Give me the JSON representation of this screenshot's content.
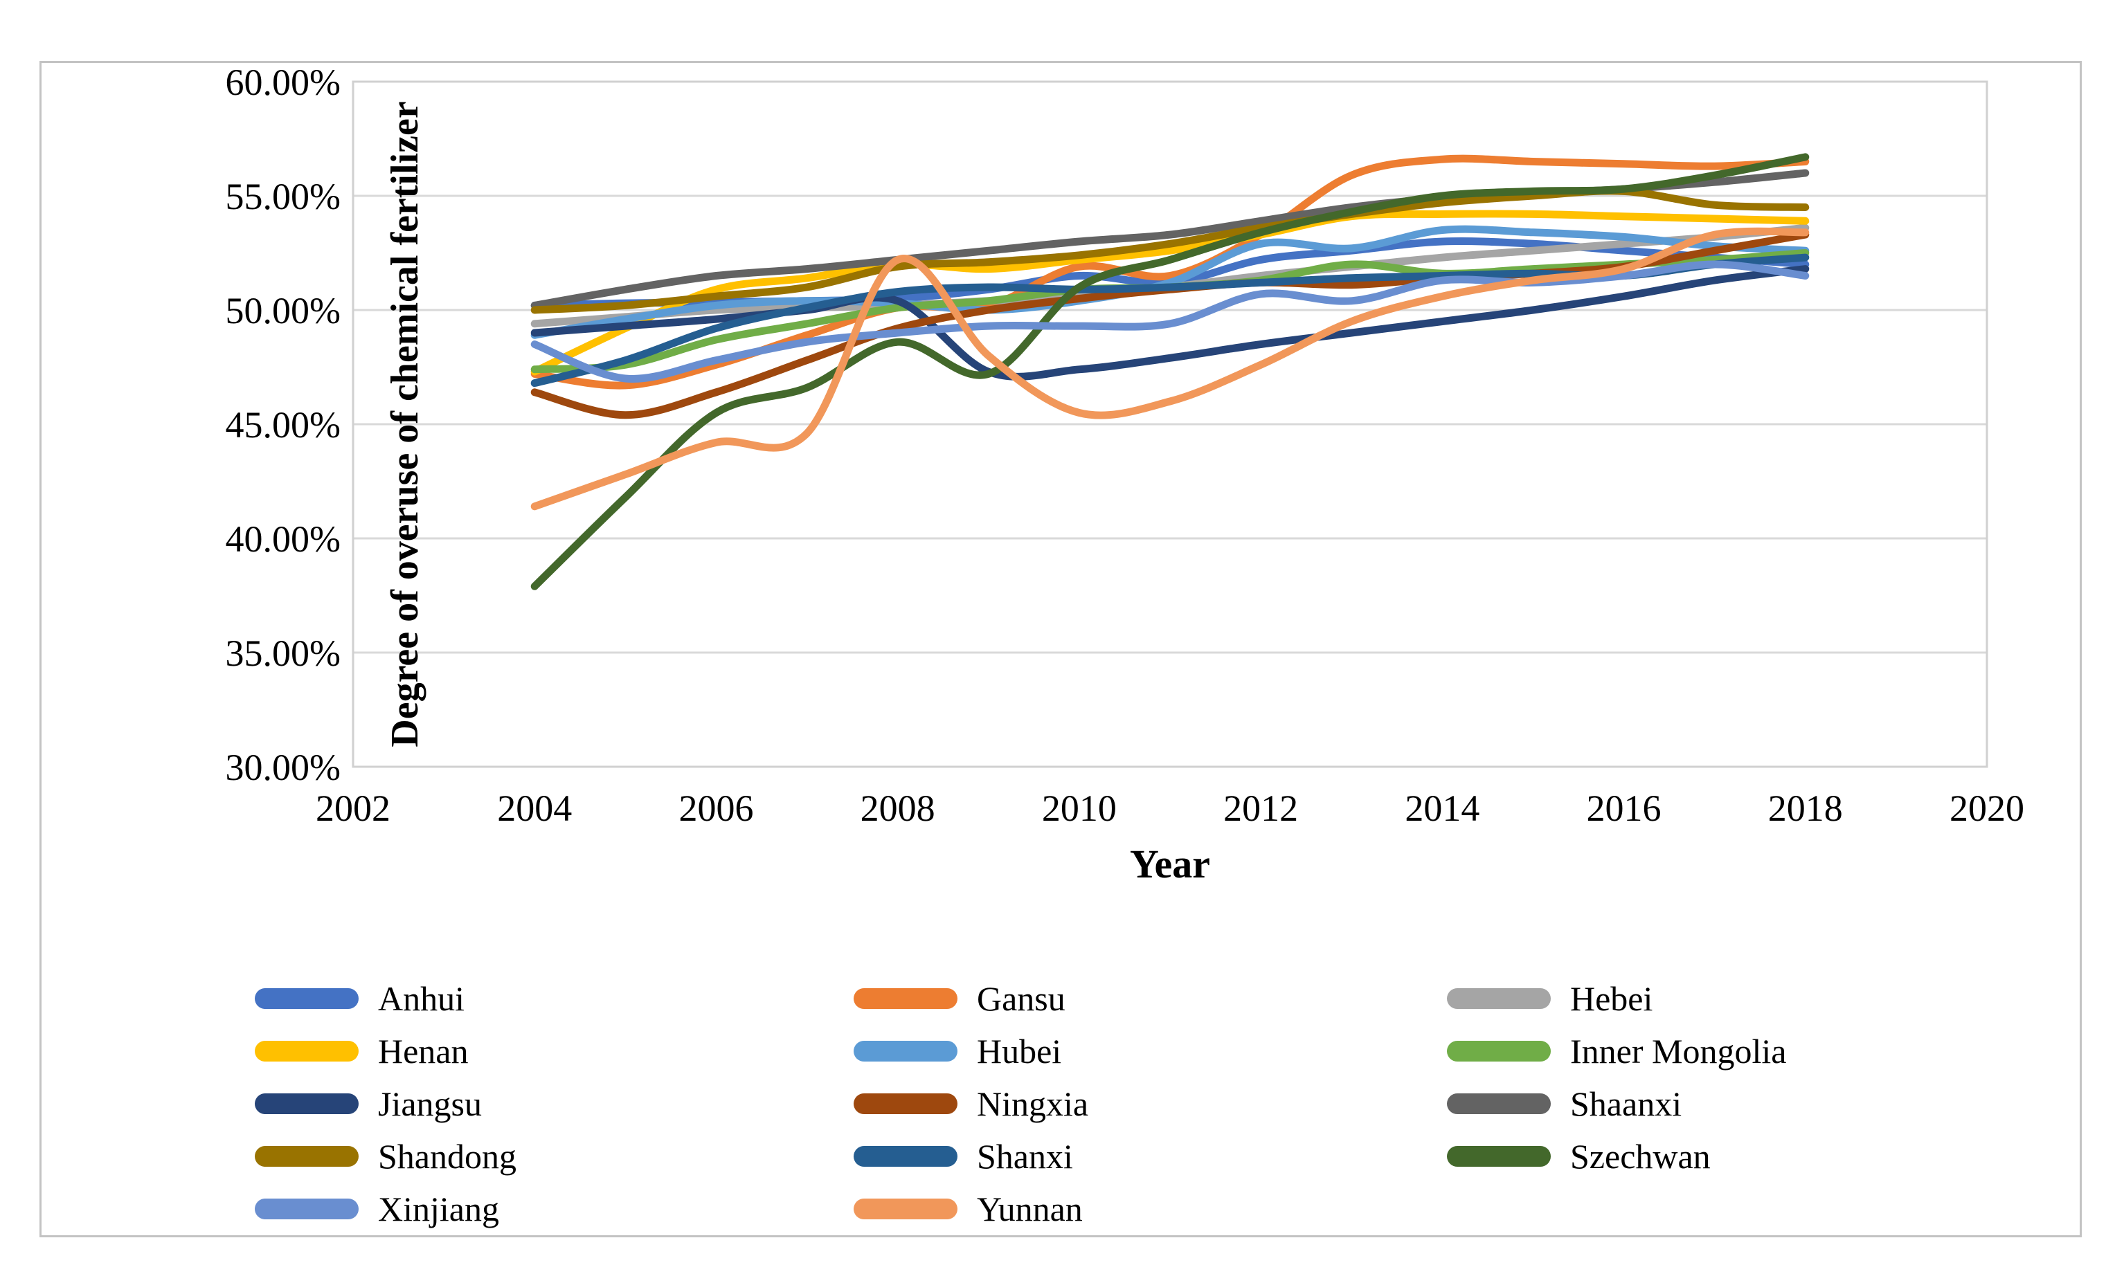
{
  "figure": {
    "background": "#ffffff",
    "outer_border_color": "#c3c3c3"
  },
  "chart_data": {
    "type": "line",
    "title": "",
    "xlabel": "Year",
    "ylabel": "Degree of overuse of chemical fertilizer",
    "x": [
      2004,
      2005,
      2006,
      2007,
      2008,
      2009,
      2010,
      2011,
      2012,
      2013,
      2014,
      2015,
      2016,
      2017,
      2018
    ],
    "xlim": [
      2002,
      2020
    ],
    "x_ticks": [
      2002,
      2004,
      2006,
      2008,
      2010,
      2012,
      2014,
      2016,
      2018,
      2020
    ],
    "ylim": [
      30,
      60
    ],
    "y_tick_step": 5,
    "y_tick_labels": [
      "30.00%",
      "35.00%",
      "40.00%",
      "45.00%",
      "50.00%",
      "55.00%",
      "60.00%"
    ],
    "y_unit": "percent",
    "grid": "horizontal",
    "grid_color": "#d9d9d9",
    "plot_border_color": "#d0d0d0",
    "legend_position": "bottom",
    "line_width": 11,
    "series": [
      {
        "name": "Anhui",
        "color": "#4472C4",
        "values": [
          50.2,
          50.3,
          50.35,
          50.4,
          50.5,
          50.9,
          51.5,
          51.2,
          52.2,
          52.6,
          53.0,
          52.9,
          52.6,
          52.3,
          52.0
        ]
      },
      {
        "name": "Gansu",
        "color": "#ED7D31",
        "values": [
          47.2,
          46.7,
          47.6,
          48.9,
          50.1,
          50.2,
          51.9,
          51.5,
          53.3,
          55.9,
          56.6,
          56.5,
          56.4,
          56.3,
          56.5
        ]
      },
      {
        "name": "Hebei",
        "color": "#A5A5A5",
        "values": [
          49.4,
          49.7,
          50.0,
          50.1,
          50.2,
          50.4,
          50.6,
          51.0,
          51.5,
          51.9,
          52.3,
          52.6,
          52.9,
          53.2,
          53.6
        ]
      },
      {
        "name": "Henan",
        "color": "#FFC000",
        "values": [
          47.3,
          49.2,
          50.9,
          51.4,
          52.0,
          51.8,
          52.2,
          52.6,
          53.3,
          54.1,
          54.2,
          54.2,
          54.1,
          54.0,
          53.9
        ]
      },
      {
        "name": "Hubei",
        "color": "#5B9BD5",
        "values": [
          48.9,
          49.6,
          50.2,
          50.4,
          50.3,
          50.0,
          50.4,
          51.2,
          52.9,
          52.7,
          53.5,
          53.4,
          53.2,
          52.8,
          52.6
        ]
      },
      {
        "name": "Inner Mongolia",
        "color": "#70AD47",
        "values": [
          47.4,
          47.6,
          48.7,
          49.4,
          50.1,
          50.4,
          50.9,
          51.0,
          51.3,
          52.0,
          51.6,
          51.8,
          52.0,
          52.2,
          52.5
        ]
      },
      {
        "name": "Jiangsu",
        "color": "#264478",
        "values": [
          49.0,
          49.3,
          49.6,
          50.0,
          50.4,
          47.3,
          47.4,
          47.9,
          48.5,
          49.0,
          49.5,
          50.0,
          50.6,
          51.3,
          51.8
        ]
      },
      {
        "name": "Ningxia",
        "color": "#9E480E",
        "values": [
          46.4,
          45.4,
          46.4,
          47.8,
          49.2,
          50.0,
          50.5,
          50.9,
          51.2,
          51.1,
          51.4,
          51.6,
          51.9,
          52.6,
          53.3
        ]
      },
      {
        "name": "Shaanxi",
        "color": "#636363",
        "values": [
          50.2,
          50.9,
          51.5,
          51.8,
          52.2,
          52.6,
          53.0,
          53.3,
          53.9,
          54.5,
          54.9,
          55.1,
          55.3,
          55.6,
          56.0
        ]
      },
      {
        "name": "Shandong",
        "color": "#997300",
        "values": [
          50.0,
          50.2,
          50.6,
          51.0,
          51.9,
          52.1,
          52.4,
          52.9,
          53.6,
          54.2,
          54.7,
          55.0,
          55.2,
          54.6,
          54.5
        ]
      },
      {
        "name": "Shanxi",
        "color": "#255E91",
        "values": [
          46.8,
          47.8,
          49.2,
          50.1,
          50.8,
          51.0,
          50.9,
          51.0,
          51.2,
          51.4,
          51.5,
          51.6,
          51.5,
          52.0,
          52.3
        ]
      },
      {
        "name": "Szechwan",
        "color": "#43682B",
        "values": [
          37.9,
          41.8,
          45.5,
          46.6,
          48.6,
          47.2,
          51.0,
          52.2,
          53.4,
          54.3,
          55.0,
          55.2,
          55.3,
          55.9,
          56.7
        ]
      },
      {
        "name": "Xinjiang",
        "color": "#698ED0",
        "values": [
          48.5,
          47.0,
          47.8,
          48.6,
          49.0,
          49.3,
          49.3,
          49.4,
          50.7,
          50.4,
          51.3,
          51.2,
          51.5,
          52.0,
          51.5
        ]
      },
      {
        "name": "Yunnan",
        "color": "#F1975A",
        "values": [
          41.4,
          42.8,
          44.2,
          44.6,
          52.2,
          48.0,
          45.5,
          46.0,
          47.6,
          49.5,
          50.6,
          51.3,
          51.8,
          53.3,
          53.4
        ]
      }
    ]
  }
}
